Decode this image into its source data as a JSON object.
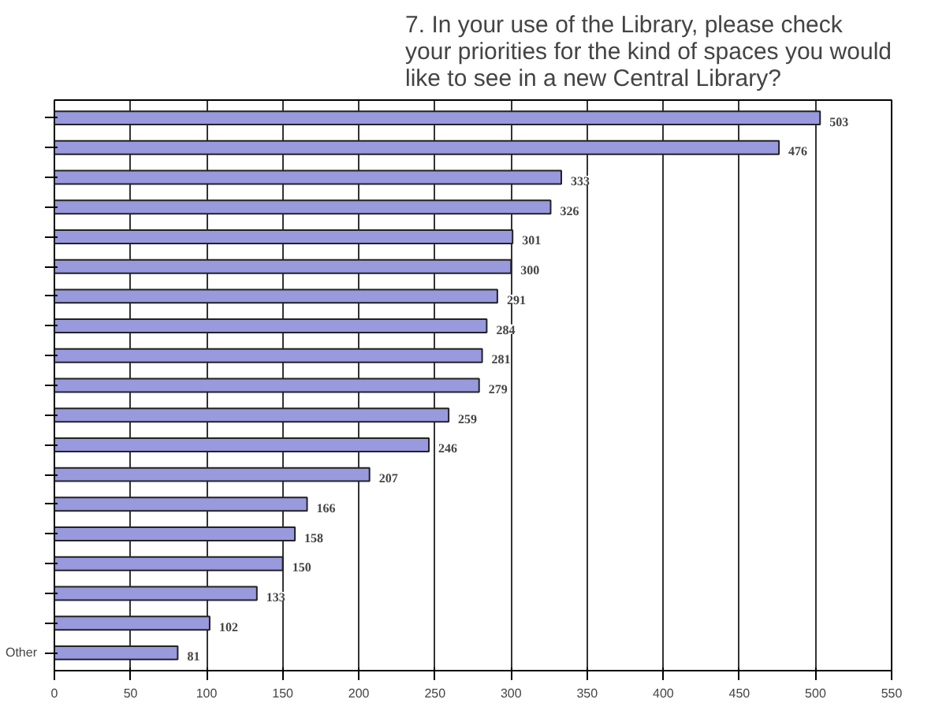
{
  "chart_data": {
    "type": "bar",
    "orientation": "horizontal",
    "title": "7.  In your use of the Library, please check your priorities for the kind of spaces you would like to see in a new Central Library?",
    "categories": [
      null,
      null,
      null,
      null,
      null,
      null,
      null,
      null,
      null,
      null,
      null,
      null,
      null,
      null,
      null,
      null,
      null,
      null,
      "Other"
    ],
    "values": [
      503,
      476,
      333,
      326,
      301,
      300,
      291,
      284,
      281,
      279,
      259,
      246,
      207,
      166,
      158,
      150,
      133,
      102,
      81
    ],
    "color": "#9999dd",
    "data_labels": true,
    "xlim": [
      0,
      550
    ],
    "xticks": [
      0,
      50,
      100,
      150,
      200,
      250,
      300,
      350,
      400,
      450,
      500,
      550
    ],
    "grid": "x"
  }
}
